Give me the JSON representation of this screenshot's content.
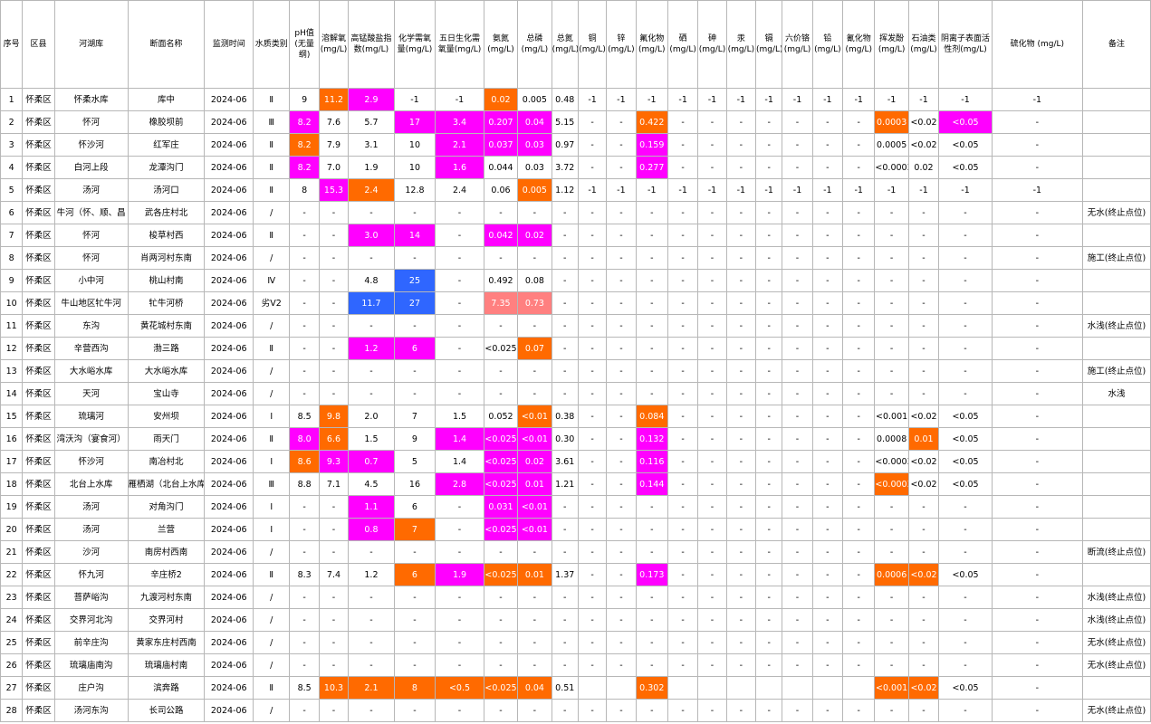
{
  "colors": {
    "magenta": "#ff00ff",
    "orange": "#ff6a00",
    "blue": "#2f66ff",
    "pink": "#ff8080",
    "grid": "#b7b7b7"
  },
  "headers": [
    "序号",
    "区县",
    "河湖库",
    "断面名称",
    "监测时间",
    "水质类别",
    "pH值(无量纲)",
    "溶解氧(mg/L)",
    "高锰酸盐指数(mg/L)",
    "化学需氧量(mg/L)",
    "五日生化需氧量(mg/L)",
    "氨氮(mg/L)",
    "总磷(mg/L)",
    "总氮(mg/L)",
    "铜(mg/L)",
    "锌(mg/L)",
    "氟化物(mg/L)",
    "硒(mg/L)",
    "砷(mg/L)",
    "汞(mg/L)",
    "镉(mg/L)",
    "六价铬(mg/L)",
    "铅(mg/L)",
    "氰化物(mg/L)",
    "挥发酚(mg/L)",
    "石油类(mg/L)",
    "阴离子表面活性剂(mg/L)",
    "硫化物 (mg/L)",
    "备注"
  ],
  "rows": [
    {
      "cells": [
        "1",
        "怀柔区",
        "怀柔水库",
        "库中",
        "2024-06",
        "Ⅱ",
        "9",
        "11.2",
        "2.9",
        "-1",
        "-1",
        "0.02",
        "0.005",
        "0.48",
        "-1",
        "-1",
        "-1",
        "-1",
        "-1",
        "-1",
        "-1",
        "-1",
        "-1",
        "-1",
        "-1",
        "-1",
        "-1",
        "-1",
        ""
      ],
      "hl": {
        "7": "orange",
        "8": "magenta",
        "11": "orange"
      }
    },
    {
      "cells": [
        "2",
        "怀柔区",
        "怀河",
        "橡胶坝前",
        "2024-06",
        "Ⅲ",
        "8.2",
        "7.6",
        "5.7",
        "17",
        "3.4",
        "0.207",
        "0.04",
        "5.15",
        "-",
        "-",
        "0.422",
        "-",
        "-",
        "-",
        "-",
        "-",
        "-",
        "-",
        "0.0003",
        "<0.02",
        "<0.05",
        "-",
        ""
      ],
      "hl": {
        "6": "magenta",
        "9": "magenta",
        "10": "magenta",
        "11": "magenta",
        "12": "magenta",
        "16": "orange",
        "24": "orange",
        "26": "magenta"
      }
    },
    {
      "cells": [
        "3",
        "怀柔区",
        "怀沙河",
        "红军庄",
        "2024-06",
        "Ⅱ",
        "8.2",
        "7.9",
        "3.1",
        "10",
        "2.1",
        "0.037",
        "0.03",
        "0.97",
        "-",
        "-",
        "0.159",
        "-",
        "-",
        "-",
        "-",
        "-",
        "-",
        "-",
        "0.0005",
        "<0.02",
        "<0.05",
        "-",
        ""
      ],
      "hl": {
        "6": "orange",
        "10": "magenta",
        "11": "magenta",
        "12": "magenta",
        "16": "magenta"
      }
    },
    {
      "cells": [
        "4",
        "怀柔区",
        "白河上段",
        "龙潭沟门",
        "2024-06",
        "Ⅱ",
        "8.2",
        "7.0",
        "1.9",
        "10",
        "1.6",
        "0.044",
        "0.03",
        "3.72",
        "-",
        "-",
        "0.277",
        "-",
        "-",
        "-",
        "-",
        "-",
        "-",
        "-",
        "<0.0003",
        "0.02",
        "<0.05",
        "-",
        ""
      ],
      "hl": {
        "6": "magenta",
        "10": "magenta",
        "16": "magenta"
      }
    },
    {
      "cells": [
        "5",
        "怀柔区",
        "汤河",
        "汤河口",
        "2024-06",
        "Ⅱ",
        "8",
        "15.3",
        "2.4",
        "12.8",
        "2.4",
        "0.06",
        "0.005",
        "1.12",
        "-1",
        "-1",
        "-1",
        "-1",
        "-1",
        "-1",
        "-1",
        "-1",
        "-1",
        "-1",
        "-1",
        "-1",
        "-1",
        "-1",
        ""
      ],
      "hl": {
        "7": "magenta",
        "8": "orange",
        "12": "orange"
      }
    },
    {
      "cells": [
        "6",
        "怀柔区",
        "牛河（怀、顺、昌",
        "武各庄村北",
        "2024-06",
        "/",
        "-",
        "-",
        "-",
        "-",
        "-",
        "-",
        "-",
        "-",
        "-",
        "-",
        "-",
        "-",
        "-",
        "-",
        "-",
        "-",
        "-",
        "-",
        "-",
        "-",
        "-",
        "-",
        "无水(终止点位)"
      ],
      "hl": {}
    },
    {
      "cells": [
        "7",
        "怀柔区",
        "怀河",
        "梭草村西",
        "2024-06",
        "Ⅱ",
        "-",
        "-",
        "3.0",
        "14",
        "-",
        "0.042",
        "0.02",
        "-",
        "-",
        "-",
        "-",
        "-",
        "-",
        "-",
        "-",
        "-",
        "-",
        "-",
        "-",
        "-",
        "-",
        "-",
        ""
      ],
      "hl": {
        "8": "magenta",
        "9": "magenta",
        "11": "magenta",
        "12": "magenta"
      }
    },
    {
      "cells": [
        "8",
        "怀柔区",
        "怀河",
        "肖两河村东南",
        "2024-06",
        "/",
        "-",
        "-",
        "-",
        "-",
        "-",
        "-",
        "-",
        "-",
        "-",
        "-",
        "-",
        "-",
        "-",
        "-",
        "-",
        "-",
        "-",
        "-",
        "-",
        "-",
        "-",
        "-",
        "施工(终止点位)"
      ],
      "hl": {}
    },
    {
      "cells": [
        "9",
        "怀柔区",
        "小中河",
        "桃山村南",
        "2024-06",
        "Ⅳ",
        "-",
        "-",
        "4.8",
        "25",
        "-",
        "0.492",
        "0.08",
        "-",
        "-",
        "-",
        "-",
        "-",
        "-",
        "-",
        "-",
        "-",
        "-",
        "-",
        "-",
        "-",
        "-",
        "-",
        ""
      ],
      "hl": {
        "9": "blue"
      }
    },
    {
      "cells": [
        "10",
        "怀柔区",
        "牛山地区牤牛河",
        "牤牛河桥",
        "2024-06",
        "劣Ⅴ2",
        "-",
        "-",
        "11.7",
        "27",
        "-",
        "7.35",
        "0.73",
        "-",
        "-",
        "-",
        "-",
        "-",
        "-",
        "-",
        "-",
        "-",
        "-",
        "-",
        "-",
        "-",
        "-",
        "-",
        ""
      ],
      "hl": {
        "8": "blue",
        "9": "blue",
        "11": "pink",
        "12": "pink"
      }
    },
    {
      "cells": [
        "11",
        "怀柔区",
        "东沟",
        "黄花城村东南",
        "2024-06",
        "/",
        "-",
        "-",
        "-",
        "-",
        "-",
        "-",
        "-",
        "-",
        "-",
        "-",
        "-",
        "-",
        "-",
        "-",
        "-",
        "-",
        "-",
        "-",
        "-",
        "-",
        "-",
        "-",
        "水浅(终止点位)"
      ],
      "hl": {}
    },
    {
      "cells": [
        "12",
        "怀柔区",
        "辛营西沟",
        "渤三路",
        "2024-06",
        "Ⅱ",
        "-",
        "-",
        "1.2",
        "6",
        "-",
        "<0.025",
        "0.07",
        "-",
        "-",
        "-",
        "-",
        "-",
        "-",
        "-",
        "-",
        "-",
        "-",
        "-",
        "-",
        "-",
        "-",
        "-",
        ""
      ],
      "hl": {
        "8": "magenta",
        "9": "magenta",
        "12": "orange"
      }
    },
    {
      "cells": [
        "13",
        "怀柔区",
        "大水峪水库",
        "大水峪水库",
        "2024-06",
        "/",
        "-",
        "-",
        "-",
        "-",
        "-",
        "-",
        "-",
        "-",
        "-",
        "-",
        "-",
        "-",
        "-",
        "-",
        "-",
        "-",
        "-",
        "-",
        "-",
        "-",
        "-",
        "-",
        "施工(终止点位)"
      ],
      "hl": {}
    },
    {
      "cells": [
        "14",
        "怀柔区",
        "天河",
        "宝山寺",
        "2024-06",
        "/",
        "-",
        "-",
        "-",
        "-",
        "-",
        "-",
        "-",
        "-",
        "-",
        "-",
        "-",
        "-",
        "-",
        "-",
        "-",
        "-",
        "-",
        "-",
        "-",
        "-",
        "-",
        "-",
        "水浅"
      ],
      "hl": {}
    },
    {
      "cells": [
        "15",
        "怀柔区",
        "琉璃河",
        "安州坝",
        "2024-06",
        "Ⅰ",
        "8.5",
        "9.8",
        "2.0",
        "7",
        "1.5",
        "0.052",
        "<0.01",
        "0.38",
        "-",
        "-",
        "0.084",
        "-",
        "-",
        "-",
        "-",
        "-",
        "-",
        "-",
        "<0.001",
        "<0.02",
        "<0.05",
        "-",
        ""
      ],
      "hl": {
        "7": "orange",
        "12": "orange",
        "16": "orange"
      }
    },
    {
      "cells": [
        "16",
        "怀柔区",
        "湾沃沟（宴食河）",
        "雨天门",
        "2024-06",
        "Ⅱ",
        "8.0",
        "6.6",
        "1.5",
        "9",
        "1.4",
        "<0.025",
        "<0.01",
        "0.30",
        "-",
        "-",
        "0.132",
        "-",
        "-",
        "-",
        "-",
        "-",
        "-",
        "-",
        "0.0008",
        "0.01",
        "<0.05",
        "-",
        ""
      ],
      "hl": {
        "6": "magenta",
        "7": "orange",
        "10": "magenta",
        "11": "magenta",
        "12": "magenta",
        "16": "magenta",
        "25": "orange"
      }
    },
    {
      "cells": [
        "17",
        "怀柔区",
        "怀沙河",
        "南冶村北",
        "2024-06",
        "Ⅰ",
        "8.6",
        "9.3",
        "0.7",
        "5",
        "1.4",
        "<0.025",
        "0.02",
        "3.61",
        "-",
        "-",
        "0.116",
        "-",
        "-",
        "-",
        "-",
        "-",
        "-",
        "-",
        "<0.0003",
        "<0.02",
        "<0.05",
        "-",
        ""
      ],
      "hl": {
        "6": "orange",
        "7": "magenta",
        "8": "magenta",
        "11": "magenta",
        "12": "magenta",
        "16": "magenta"
      }
    },
    {
      "cells": [
        "18",
        "怀柔区",
        "北台上水库",
        "雁栖湖（北台上水库",
        "2024-06",
        "Ⅲ",
        "8.8",
        "7.1",
        "4.5",
        "16",
        "2.8",
        "<0.025",
        "0.01",
        "1.21",
        "-",
        "-",
        "0.144",
        "-",
        "-",
        "-",
        "-",
        "-",
        "-",
        "-",
        "<0.0003",
        "<0.02",
        "<0.05",
        "-",
        ""
      ],
      "hl": {
        "10": "magenta",
        "11": "magenta",
        "12": "magenta",
        "16": "magenta",
        "24": "orange"
      }
    },
    {
      "cells": [
        "19",
        "怀柔区",
        "汤河",
        "对角沟门",
        "2024-06",
        "Ⅰ",
        "-",
        "-",
        "1.1",
        "6",
        "-",
        "0.031",
        "<0.01",
        "-",
        "-",
        "-",
        "-",
        "-",
        "-",
        "-",
        "-",
        "-",
        "-",
        "-",
        "-",
        "-",
        "-",
        "-",
        ""
      ],
      "hl": {
        "8": "magenta",
        "11": "magenta",
        "12": "magenta"
      }
    },
    {
      "cells": [
        "20",
        "怀柔区",
        "汤河",
        "兰营",
        "2024-06",
        "Ⅰ",
        "-",
        "-",
        "0.8",
        "7",
        "-",
        "<0.025",
        "<0.01",
        "-",
        "-",
        "-",
        "-",
        "-",
        "-",
        "-",
        "-",
        "-",
        "-",
        "-",
        "-",
        "-",
        "-",
        "-",
        ""
      ],
      "hl": {
        "8": "magenta",
        "9": "orange",
        "11": "magenta",
        "12": "magenta"
      }
    },
    {
      "cells": [
        "21",
        "怀柔区",
        "沙河",
        "南房村西南",
        "2024-06",
        "/",
        "-",
        "-",
        "-",
        "-",
        "-",
        "-",
        "-",
        "-",
        "-",
        "-",
        "-",
        "-",
        "-",
        "-",
        "-",
        "-",
        "-",
        "-",
        "-",
        "-",
        "-",
        "-",
        "断流(终止点位)"
      ],
      "hl": {}
    },
    {
      "cells": [
        "22",
        "怀柔区",
        "怀九河",
        "辛庄桥2",
        "2024-06",
        "Ⅱ",
        "8.3",
        "7.4",
        "1.2",
        "6",
        "1.9",
        "<0.025",
        "0.01",
        "1.37",
        "-",
        "-",
        "0.173",
        "-",
        "-",
        "-",
        "-",
        "-",
        "-",
        "-",
        "0.0006",
        "<0.02",
        "<0.05",
        "-",
        ""
      ],
      "hl": {
        "9": "orange",
        "10": "magenta",
        "11": "orange",
        "12": "orange",
        "16": "magenta",
        "24": "orange",
        "25": "orange"
      }
    },
    {
      "cells": [
        "23",
        "怀柔区",
        "菩萨峪沟",
        "九渡河村东南",
        "2024-06",
        "/",
        "-",
        "-",
        "-",
        "-",
        "-",
        "-",
        "-",
        "-",
        "-",
        "-",
        "-",
        "-",
        "-",
        "-",
        "-",
        "-",
        "-",
        "-",
        "-",
        "-",
        "-",
        "-",
        "水浅(终止点位)"
      ],
      "hl": {}
    },
    {
      "cells": [
        "24",
        "怀柔区",
        "交界河北沟",
        "交界河村",
        "2024-06",
        "/",
        "-",
        "-",
        "-",
        "-",
        "-",
        "-",
        "-",
        "-",
        "-",
        "-",
        "-",
        "-",
        "-",
        "-",
        "-",
        "-",
        "-",
        "-",
        "-",
        "-",
        "-",
        "-",
        "水浅(终止点位)"
      ],
      "hl": {}
    },
    {
      "cells": [
        "25",
        "怀柔区",
        "前辛庄沟",
        "黄家东庄村西南",
        "2024-06",
        "/",
        "-",
        "-",
        "-",
        "-",
        "-",
        "-",
        "-",
        "-",
        "-",
        "-",
        "-",
        "-",
        "-",
        "-",
        "-",
        "-",
        "-",
        "-",
        "-",
        "-",
        "-",
        "-",
        "无水(终止点位)"
      ],
      "hl": {}
    },
    {
      "cells": [
        "26",
        "怀柔区",
        "琉璃庙南沟",
        "琉璃庙村南",
        "2024-06",
        "/",
        "-",
        "-",
        "-",
        "-",
        "-",
        "-",
        "-",
        "-",
        "-",
        "-",
        "-",
        "-",
        "-",
        "-",
        "-",
        "-",
        "-",
        "-",
        "-",
        "-",
        "-",
        "-",
        "无水(终止点位)"
      ],
      "hl": {}
    },
    {
      "cells": [
        "27",
        "怀柔区",
        "庄户沟",
        "滨奔路",
        "2024-06",
        "Ⅱ",
        "8.5",
        "10.3",
        "2.1",
        "8",
        "<0.5",
        "<0.025",
        "0.04",
        "0.51",
        "",
        "",
        "0.302",
        "",
        "",
        "",
        "",
        "",
        "",
        "",
        "<0.001",
        "<0.02",
        "<0.05",
        "-",
        ""
      ],
      "hl": {
        "7": "orange",
        "8": "orange",
        "9": "orange",
        "10": "orange",
        "11": "orange",
        "12": "orange",
        "16": "orange",
        "24": "orange",
        "25": "orange"
      }
    },
    {
      "cells": [
        "28",
        "怀柔区",
        "汤河东沟",
        "长司公路",
        "2024-06",
        "/",
        "-",
        "-",
        "-",
        "-",
        "-",
        "-",
        "-",
        "-",
        "-",
        "-",
        "-",
        "-",
        "-",
        "-",
        "-",
        "-",
        "-",
        "-",
        "-",
        "-",
        "-",
        "-",
        "无水(终止点位)"
      ],
      "hl": {}
    }
  ]
}
